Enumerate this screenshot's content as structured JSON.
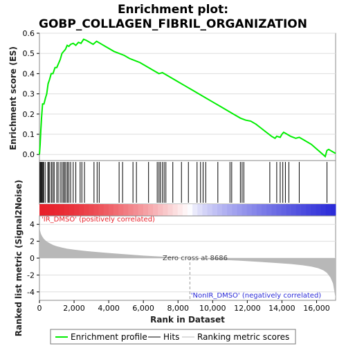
{
  "chart_data": {
    "type": "line",
    "title_line1": "Enrichment plot:",
    "title_line2": "GOBP_COLLAGEN_FIBRIL_ORGANIZATION",
    "ylabel_top": "Enrichment score (ES)",
    "ylabel_bottom": "Ranked list metric (Signal2Noise)",
    "xlabel": "Rank in Dataset",
    "x_range": [
      0,
      17100
    ],
    "x_ticks": [
      0,
      2000,
      4000,
      6000,
      8000,
      10000,
      12000,
      14000,
      16000
    ],
    "x_tick_labels": [
      "0",
      "2,000",
      "4,000",
      "6,000",
      "8,000",
      "10,000",
      "12,000",
      "14,000",
      "16,000"
    ],
    "es_ylim": [
      -0.03,
      0.6
    ],
    "es_ticks": [
      0.0,
      0.1,
      0.2,
      0.3,
      0.4,
      0.5,
      0.6
    ],
    "es_tick_labels": [
      "0.0",
      "0.1",
      "0.2",
      "0.3",
      "0.4",
      "0.5",
      "0.6"
    ],
    "metric_ylim": [
      -5,
      5
    ],
    "metric_ticks": [
      -4,
      -2,
      0,
      2,
      4
    ],
    "metric_tick_labels": [
      "-4",
      "-2",
      "0",
      "2",
      "4"
    ],
    "zero_cross": 8686,
    "zero_cross_label": "Zero cross at 8686",
    "positive_label": "'IR_DMSO' (positively correlated)",
    "negative_label": "'NonIR_DMSO' (negatively correlated)",
    "enrichment_profile": {
      "x": [
        0,
        40,
        80,
        120,
        180,
        260,
        350,
        420,
        500,
        580,
        680,
        780,
        900,
        1000,
        1100,
        1200,
        1300,
        1400,
        1500,
        1600,
        1700,
        1800,
        1950,
        2100,
        2250,
        2400,
        2550,
        2700,
        2900,
        3100,
        3300,
        3400,
        3600,
        3800,
        4000,
        4300,
        4600,
        4900,
        5200,
        5500,
        5800,
        6100,
        6400,
        6700,
        6900,
        7100,
        7300,
        7600,
        8000,
        8400,
        8800,
        9200,
        9600,
        10000,
        10400,
        10800,
        11200,
        11600,
        11900,
        12200,
        12500,
        12800,
        13100,
        13400,
        13600,
        13700,
        13900,
        14000,
        14100,
        14300,
        14500,
        14800,
        15000,
        15300,
        15700,
        16100,
        16500,
        16600,
        16700,
        16900,
        17100
      ],
      "y": [
        0.0,
        0.05,
        0.12,
        0.18,
        0.25,
        0.25,
        0.28,
        0.3,
        0.35,
        0.37,
        0.4,
        0.4,
        0.43,
        0.43,
        0.45,
        0.47,
        0.5,
        0.51,
        0.52,
        0.54,
        0.535,
        0.545,
        0.55,
        0.54,
        0.555,
        0.55,
        0.57,
        0.565,
        0.555,
        0.545,
        0.56,
        0.555,
        0.545,
        0.535,
        0.525,
        0.51,
        0.5,
        0.49,
        0.475,
        0.465,
        0.455,
        0.44,
        0.425,
        0.41,
        0.4,
        0.405,
        0.395,
        0.38,
        0.36,
        0.34,
        0.32,
        0.3,
        0.28,
        0.26,
        0.24,
        0.22,
        0.2,
        0.18,
        0.17,
        0.165,
        0.15,
        0.13,
        0.11,
        0.09,
        0.08,
        0.09,
        0.085,
        0.1,
        0.11,
        0.1,
        0.09,
        0.08,
        0.085,
        0.07,
        0.05,
        0.02,
        -0.01,
        0.02,
        0.025,
        0.015,
        0.005
      ]
    },
    "hits": [
      30,
      70,
      110,
      150,
      200,
      240,
      330,
      480,
      540,
      600,
      700,
      780,
      850,
      1000,
      1080,
      1200,
      1300,
      1380,
      1460,
      1530,
      1620,
      1700,
      1800,
      1950,
      2100,
      2350,
      2450,
      2600,
      3150,
      3330,
      3450,
      4600,
      4800,
      5400,
      5600,
      6300,
      6800,
      6900,
      6980,
      7100,
      7200,
      7300,
      7700,
      8200,
      8600,
      9100,
      9300,
      9450,
      9600,
      10300,
      11000,
      11100,
      11600,
      11700,
      11800,
      13300,
      13700,
      13900,
      14050,
      14200,
      14400,
      15000,
      16600
    ],
    "metric_curve": {
      "x": [
        0,
        30,
        80,
        150,
        250,
        400,
        600,
        800,
        1000,
        1300,
        1600,
        2000,
        2500,
        3000,
        4000,
        5000,
        6000,
        7000,
        8000,
        8686,
        9500,
        10500,
        11500,
        12500,
        13500,
        14500,
        15200,
        15700,
        16100,
        16400,
        16600,
        16800,
        16950,
        17050,
        17100
      ],
      "y": [
        4.0,
        3.3,
        2.9,
        2.6,
        2.3,
        2.0,
        1.75,
        1.55,
        1.4,
        1.25,
        1.12,
        1.0,
        0.88,
        0.78,
        0.6,
        0.45,
        0.3,
        0.18,
        0.07,
        0.0,
        -0.1,
        -0.2,
        -0.3,
        -0.42,
        -0.55,
        -0.7,
        -0.85,
        -1.0,
        -1.2,
        -1.45,
        -1.75,
        -2.3,
        -3.0,
        -4.2,
        -4.8
      ]
    },
    "legend": [
      "Enrichment profile",
      "Hits",
      "Ranking metric scores"
    ],
    "colors": {
      "profile": "#00ee00",
      "hits": "#000000",
      "metric_fill": "#b8b8b8",
      "positive": "#e8202a",
      "negative": "#2a2ad8",
      "neutral": "#ffffff"
    }
  }
}
